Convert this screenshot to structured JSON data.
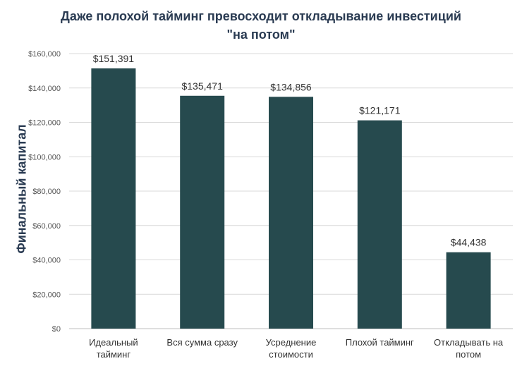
{
  "chart_data": {
    "type": "bar",
    "title_lines": [
      "Даже полохой тайминг превосходит откладывание инвестиций",
      "\"на потом\""
    ],
    "xlabel": "",
    "ylabel": "Финальный капитал",
    "categories": [
      [
        "Идеальный",
        "тайминг"
      ],
      [
        "Вся сумма сразу"
      ],
      [
        "Усреднение",
        "стоимости"
      ],
      [
        "Плохой тайминг"
      ],
      [
        "Откладывать на",
        "потом"
      ]
    ],
    "values": [
      151391,
      135471,
      134856,
      121171,
      44438
    ],
    "value_labels": [
      "$151,391",
      "$135,471",
      "$134,856",
      "$121,171",
      "$44,438"
    ],
    "ylim": [
      0,
      160000
    ],
    "yticks": [
      0,
      20000,
      40000,
      60000,
      80000,
      100000,
      120000,
      140000,
      160000
    ],
    "ytick_labels": [
      "$0",
      "$20,000",
      "$40,000",
      "$60,000",
      "$80,000",
      "$100,000",
      "$120,000",
      "$140,000",
      "$160,000"
    ],
    "grid": true,
    "legend": "none",
    "colors": {
      "bar": "#264a4e",
      "grid": "#d9d9d9",
      "axis": "#bfbfbf"
    }
  }
}
